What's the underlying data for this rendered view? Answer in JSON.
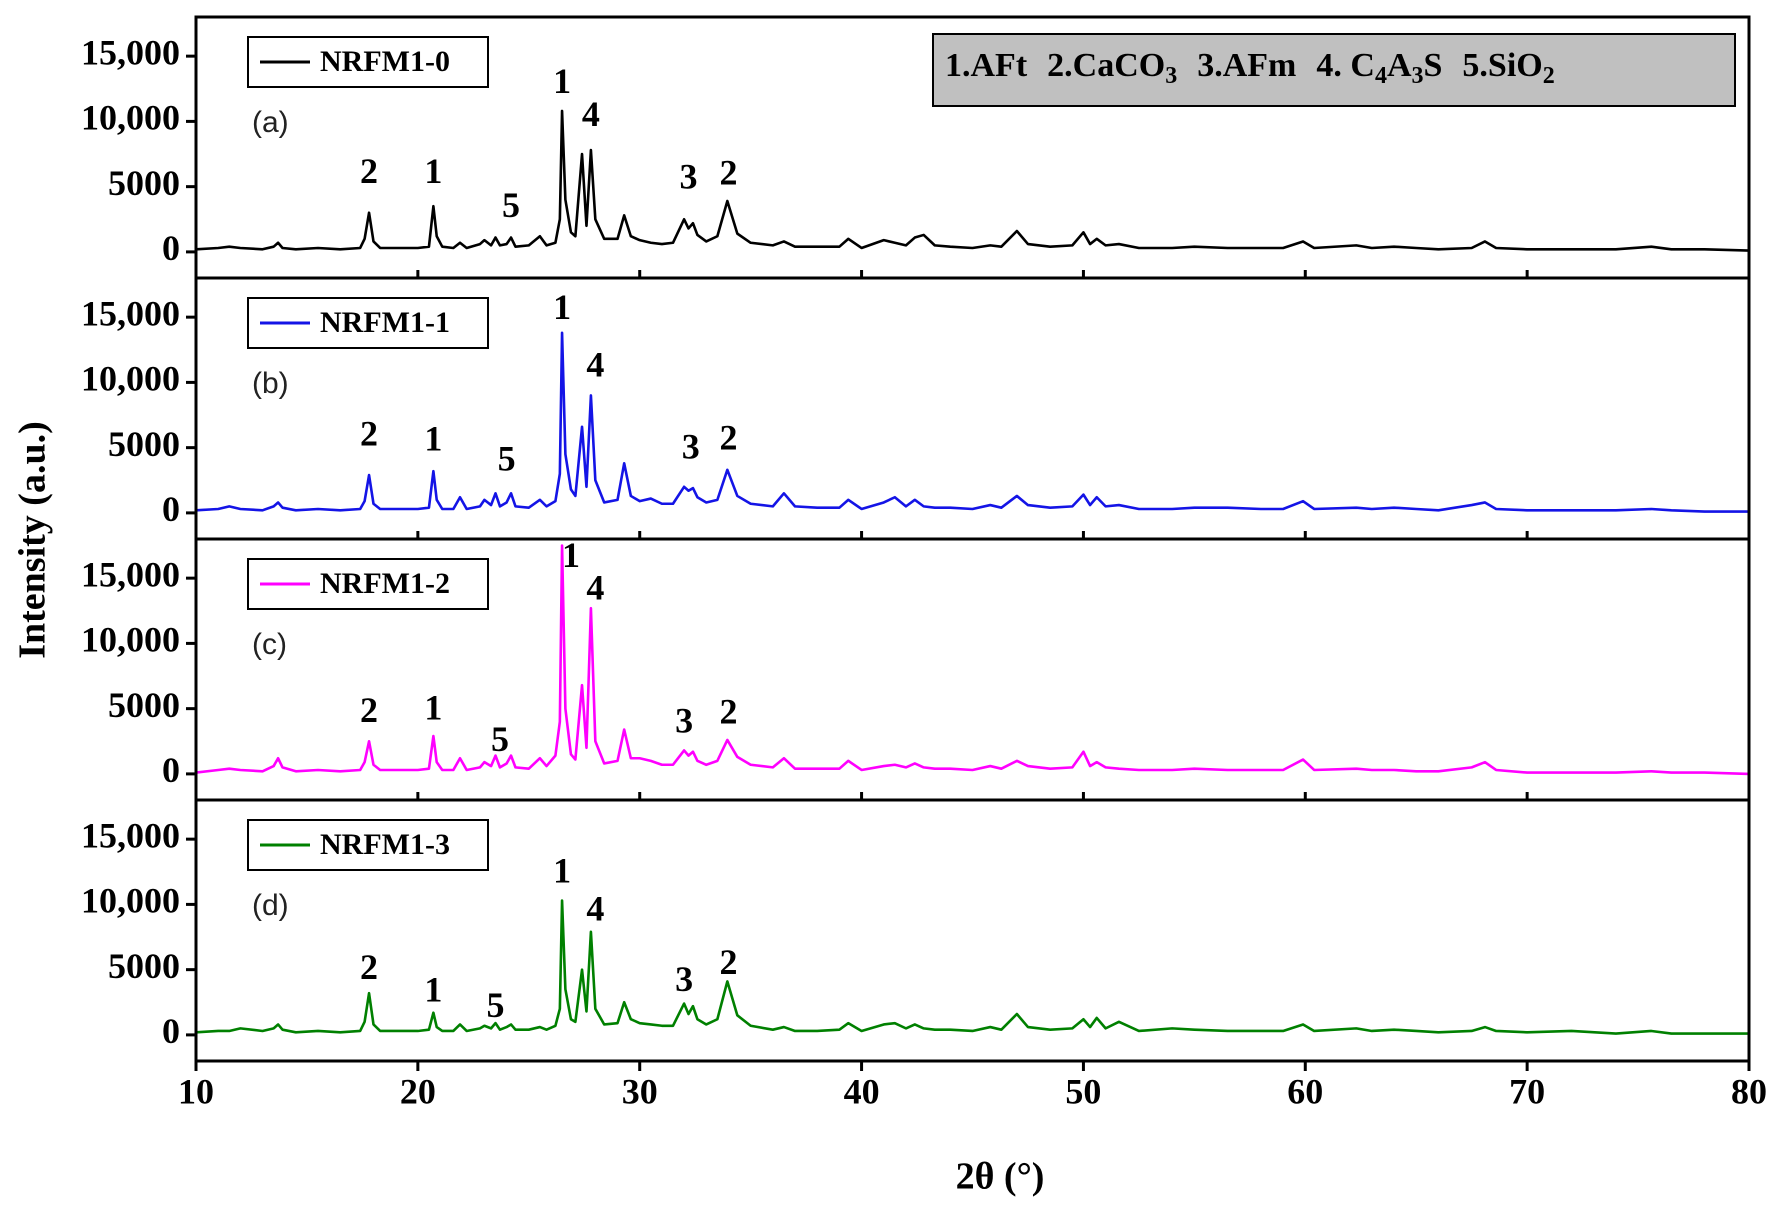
{
  "figure": {
    "x_label": "2θ (°)",
    "y_label": "Intensity (a.u.)",
    "xlim": [
      10,
      80
    ],
    "xticks": [
      10,
      20,
      30,
      40,
      50,
      60,
      70,
      80
    ],
    "phase_legend": [
      [
        "1.AFt"
      ],
      [
        "2.CaCO",
        "3"
      ],
      [
        "3.AFm"
      ],
      [
        "4. C",
        "4",
        "A",
        "3",
        "S"
      ],
      [
        "5.SiO",
        "2"
      ]
    ]
  },
  "chart_data": [
    {
      "type": "line",
      "panel_label": "(a)",
      "ylim": [
        -2000,
        18000
      ],
      "yticks": [
        0,
        5000,
        {
          "value": 10000,
          "label": "10,000"
        },
        {
          "value": 15000,
          "label": "15,000"
        }
      ],
      "x": [
        10,
        11,
        11.5,
        12,
        13,
        13.5,
        13.7,
        13.9,
        14.5,
        15.5,
        16.5,
        17.4,
        17.6,
        17.8,
        18.0,
        18.3,
        19,
        20,
        20.5,
        20.7,
        20.85,
        21.1,
        21.6,
        21.9,
        22.2,
        22.8,
        23.0,
        23.3,
        23.5,
        23.7,
        24.0,
        24.2,
        24.4,
        25,
        25.5,
        25.8,
        26.2,
        26.4,
        26.5,
        26.65,
        26.9,
        27.1,
        27.4,
        27.6,
        27.8,
        28.0,
        28.4,
        29.0,
        29.3,
        29.6,
        30.0,
        30.5,
        31.0,
        31.5,
        32.0,
        32.2,
        32.4,
        32.6,
        33.0,
        33.5,
        33.95,
        34.4,
        35,
        36,
        36.5,
        37,
        38,
        39,
        39.4,
        40,
        41,
        41.5,
        42,
        42.4,
        42.8,
        43.3,
        44,
        45,
        45.8,
        46.3,
        47.0,
        47.5,
        48.5,
        49.5,
        50.0,
        50.3,
        50.6,
        51,
        51.6,
        52.5,
        54,
        55,
        56.5,
        58,
        59,
        59.9,
        60.4,
        62.3,
        63,
        64,
        65,
        66,
        67.5,
        68.1,
        68.6,
        70,
        72,
        74,
        75.6,
        76.5,
        78,
        80
      ],
      "series": [
        {
          "name": "NRFM1-0",
          "color": "#000000",
          "values": [
            200,
            300,
            400,
            300,
            200,
            400,
            700,
            300,
            200,
            300,
            200,
            300,
            1000,
            3000,
            800,
            300,
            300,
            300,
            400,
            3500,
            1200,
            400,
            300,
            700,
            300,
            600,
            900,
            500,
            1100,
            500,
            600,
            1100,
            400,
            500,
            1200,
            500,
            700,
            2500,
            10800,
            4000,
            1500,
            1200,
            7500,
            2000,
            7800,
            2500,
            1000,
            1000,
            2800,
            1200,
            900,
            700,
            600,
            700,
            2500,
            1800,
            2200,
            1300,
            800,
            1200,
            3900,
            1400,
            700,
            500,
            800,
            400,
            400,
            400,
            1000,
            300,
            900,
            700,
            500,
            1100,
            1300,
            500,
            400,
            300,
            500,
            400,
            1600,
            600,
            400,
            500,
            1500,
            600,
            1000,
            500,
            600,
            300,
            300,
            400,
            300,
            300,
            300,
            800,
            300,
            500,
            300,
            400,
            300,
            200,
            300,
            800,
            300,
            200,
            200,
            200,
            400,
            200,
            200,
            100
          ]
        }
      ],
      "annotations": [
        {
          "label": "2",
          "x": 17.8,
          "y": 5900
        },
        {
          "label": "1",
          "x": 20.7,
          "y": 5900
        },
        {
          "label": "5",
          "x": 24.2,
          "y": 3300
        },
        {
          "label": "1",
          "x": 26.5,
          "y": 12800
        },
        {
          "label": "4",
          "x": 27.8,
          "y": 10300
        },
        {
          "label": "3",
          "x": 32.2,
          "y": 5500
        },
        {
          "label": "2",
          "x": 34.0,
          "y": 5800
        }
      ]
    },
    {
      "type": "line",
      "panel_label": "(b)",
      "ylim": [
        -2000,
        18000
      ],
      "yticks": [
        0,
        5000,
        {
          "value": 10000,
          "label": "10,000"
        },
        {
          "value": 15000,
          "label": "15,000"
        }
      ],
      "x": [
        10,
        11,
        11.5,
        12,
        13,
        13.5,
        13.7,
        13.9,
        14.5,
        15.5,
        16.5,
        17.4,
        17.6,
        17.8,
        18.0,
        18.3,
        19,
        20,
        20.5,
        20.7,
        20.85,
        21.1,
        21.6,
        21.9,
        22.2,
        22.8,
        23.0,
        23.3,
        23.5,
        23.7,
        24.0,
        24.2,
        24.4,
        25,
        25.5,
        25.8,
        26.2,
        26.4,
        26.5,
        26.65,
        26.9,
        27.1,
        27.4,
        27.6,
        27.8,
        28.0,
        28.4,
        29.0,
        29.3,
        29.6,
        30.0,
        30.5,
        31.0,
        31.5,
        32.0,
        32.2,
        32.4,
        32.6,
        33.0,
        33.5,
        33.95,
        34.4,
        35,
        36,
        36.5,
        37,
        38,
        39,
        39.4,
        40,
        41,
        41.5,
        42,
        42.4,
        42.8,
        43.3,
        44,
        45,
        45.8,
        46.3,
        47.0,
        47.5,
        48.5,
        49.5,
        50.0,
        50.3,
        50.6,
        51,
        51.6,
        52.5,
        54,
        55,
        56.5,
        58,
        59,
        59.9,
        60.4,
        62.3,
        63,
        64,
        65,
        66,
        67.5,
        68.1,
        68.6,
        70,
        72,
        74,
        75.6,
        76.5,
        78,
        80
      ],
      "series": [
        {
          "name": "NRFM1-1",
          "color": "#1414e6",
          "values": [
            200,
            300,
            500,
            300,
            200,
            500,
            800,
            400,
            200,
            300,
            200,
            300,
            900,
            2900,
            700,
            300,
            300,
            300,
            400,
            3200,
            1000,
            300,
            300,
            1200,
            300,
            500,
            1000,
            600,
            1500,
            500,
            800,
            1500,
            500,
            400,
            1000,
            500,
            900,
            3000,
            13800,
            4500,
            1800,
            1300,
            6600,
            2000,
            9000,
            2500,
            800,
            1000,
            3800,
            1300,
            900,
            1100,
            700,
            700,
            2000,
            1700,
            1900,
            1200,
            800,
            1000,
            3300,
            1300,
            700,
            500,
            1500,
            500,
            400,
            400,
            1000,
            300,
            800,
            1200,
            500,
            1000,
            500,
            400,
            400,
            300,
            600,
            400,
            1300,
            600,
            400,
            500,
            1400,
            600,
            1200,
            500,
            600,
            300,
            300,
            400,
            400,
            300,
            300,
            900,
            300,
            400,
            300,
            400,
            300,
            200,
            600,
            800,
            300,
            200,
            200,
            200,
            300,
            200,
            100,
            100
          ]
        }
      ],
      "annotations": [
        {
          "label": "2",
          "x": 17.8,
          "y": 5800
        },
        {
          "label": "1",
          "x": 20.7,
          "y": 5400
        },
        {
          "label": "5",
          "x": 24.0,
          "y": 3900
        },
        {
          "label": "1",
          "x": 26.5,
          "y": 15500
        },
        {
          "label": "4",
          "x": 28.0,
          "y": 11100
        },
        {
          "label": "3",
          "x": 32.3,
          "y": 4800
        },
        {
          "label": "2",
          "x": 34.0,
          "y": 5500
        }
      ]
    },
    {
      "type": "line",
      "panel_label": "(c)",
      "ylim": [
        -2000,
        18000
      ],
      "yticks": [
        0,
        5000,
        {
          "value": 10000,
          "label": "10,000"
        },
        {
          "value": 15000,
          "label": "15,000"
        }
      ],
      "x": [
        10,
        11,
        11.5,
        12,
        13,
        13.5,
        13.7,
        13.9,
        14.5,
        15.5,
        16.5,
        17.4,
        17.6,
        17.8,
        18.0,
        18.3,
        19,
        20,
        20.5,
        20.7,
        20.85,
        21.1,
        21.6,
        21.9,
        22.2,
        22.8,
        23.0,
        23.3,
        23.5,
        23.7,
        24.0,
        24.2,
        24.4,
        25,
        25.5,
        25.8,
        26.2,
        26.4,
        26.5,
        26.65,
        26.9,
        27.1,
        27.4,
        27.6,
        27.8,
        28.0,
        28.4,
        29.0,
        29.3,
        29.6,
        30.0,
        30.5,
        31.0,
        31.5,
        32.0,
        32.2,
        32.4,
        32.6,
        33.0,
        33.5,
        33.95,
        34.4,
        35,
        36,
        36.5,
        37,
        38,
        39,
        39.4,
        40,
        41,
        41.5,
        42,
        42.4,
        42.8,
        43.3,
        44,
        45,
        45.8,
        46.3,
        47.0,
        47.5,
        48.5,
        49.5,
        50.0,
        50.3,
        50.6,
        51,
        51.6,
        52.5,
        54,
        55,
        56.5,
        58,
        59,
        59.9,
        60.4,
        62.3,
        63,
        64,
        65,
        66,
        67.5,
        68.1,
        68.6,
        70,
        72,
        74,
        75.6,
        76.5,
        78,
        80
      ],
      "series": [
        {
          "name": "NRFM1-2",
          "color": "#ff00ff",
          "values": [
            100,
            300,
            400,
            300,
            200,
            600,
            1200,
            500,
            200,
            300,
            200,
            300,
            900,
            2500,
            700,
            300,
            300,
            300,
            400,
            2900,
            900,
            300,
            300,
            1200,
            300,
            500,
            900,
            600,
            1400,
            500,
            800,
            1400,
            500,
            400,
            1200,
            600,
            1400,
            4000,
            17500,
            5000,
            1500,
            1100,
            6800,
            2000,
            12700,
            2500,
            800,
            1000,
            3400,
            1200,
            1200,
            1000,
            700,
            700,
            1800,
            1400,
            1700,
            1000,
            700,
            1000,
            2600,
            1300,
            700,
            500,
            1200,
            400,
            400,
            400,
            1000,
            300,
            600,
            700,
            500,
            800,
            500,
            400,
            400,
            300,
            600,
            400,
            1000,
            600,
            400,
            500,
            1700,
            600,
            900,
            500,
            400,
            300,
            300,
            400,
            300,
            300,
            300,
            1100,
            300,
            400,
            300,
            300,
            200,
            200,
            500,
            900,
            300,
            100,
            100,
            100,
            200,
            100,
            100,
            0
          ]
        }
      ],
      "annotations": [
        {
          "label": "2",
          "x": 17.8,
          "y": 4600
        },
        {
          "label": "1",
          "x": 20.7,
          "y": 4800
        },
        {
          "label": "5",
          "x": 23.7,
          "y": 2400
        },
        {
          "label": "1",
          "x": 26.9,
          "y": 16500
        },
        {
          "label": "4",
          "x": 28.0,
          "y": 14000
        },
        {
          "label": "3",
          "x": 32.0,
          "y": 3800
        },
        {
          "label": "2",
          "x": 34.0,
          "y": 4500
        }
      ]
    },
    {
      "type": "line",
      "panel_label": "(d)",
      "ylim": [
        -2000,
        18000
      ],
      "yticks": [
        0,
        5000,
        {
          "value": 10000,
          "label": "10,000"
        },
        {
          "value": 15000,
          "label": "15,000"
        }
      ],
      "x": [
        10,
        11,
        11.5,
        12,
        13,
        13.5,
        13.7,
        13.9,
        14.5,
        15.5,
        16.5,
        17.4,
        17.6,
        17.8,
        18.0,
        18.3,
        19,
        20,
        20.5,
        20.7,
        20.85,
        21.1,
        21.6,
        21.9,
        22.2,
        22.8,
        23.0,
        23.3,
        23.5,
        23.7,
        24.0,
        24.2,
        24.4,
        25,
        25.5,
        25.8,
        26.2,
        26.4,
        26.5,
        26.65,
        26.9,
        27.1,
        27.4,
        27.6,
        27.8,
        28.0,
        28.4,
        29.0,
        29.3,
        29.6,
        30.0,
        30.5,
        31.0,
        31.5,
        32.0,
        32.2,
        32.4,
        32.6,
        33.0,
        33.5,
        33.95,
        34.4,
        35,
        36,
        36.5,
        37,
        38,
        39,
        39.4,
        40,
        41,
        41.5,
        42,
        42.4,
        42.8,
        43.3,
        44,
        45,
        45.8,
        46.3,
        47.0,
        47.5,
        48.5,
        49.5,
        50.0,
        50.3,
        50.6,
        51,
        51.6,
        52.5,
        54,
        55,
        56.5,
        58,
        59,
        59.9,
        60.4,
        62.3,
        63,
        64,
        65,
        66,
        67.5,
        68.1,
        68.6,
        70,
        72,
        74,
        75.6,
        76.5,
        78,
        80
      ],
      "series": [
        {
          "name": "NRFM1-3",
          "color": "#008000",
          "values": [
            200,
            300,
            300,
            500,
            300,
            500,
            800,
            400,
            200,
            300,
            200,
            300,
            1000,
            3200,
            800,
            300,
            300,
            300,
            400,
            1700,
            600,
            300,
            300,
            800,
            300,
            500,
            700,
            500,
            900,
            400,
            600,
            800,
            400,
            400,
            600,
            400,
            700,
            2000,
            10300,
            3500,
            1200,
            1000,
            5000,
            1800,
            7900,
            2000,
            800,
            900,
            2500,
            1200,
            900,
            800,
            700,
            700,
            2400,
            1600,
            2200,
            1200,
            800,
            1200,
            4100,
            1500,
            700,
            400,
            600,
            300,
            300,
            400,
            900,
            300,
            800,
            900,
            500,
            800,
            500,
            400,
            400,
            300,
            600,
            400,
            1600,
            600,
            400,
            500,
            1200,
            600,
            1300,
            500,
            1000,
            300,
            500,
            400,
            300,
            300,
            300,
            800,
            300,
            500,
            300,
            400,
            300,
            200,
            300,
            600,
            300,
            200,
            300,
            100,
            300,
            100,
            100,
            100
          ]
        }
      ],
      "annotations": [
        {
          "label": "2",
          "x": 17.8,
          "y": 4900
        },
        {
          "label": "1",
          "x": 20.7,
          "y": 3200
        },
        {
          "label": "5",
          "x": 23.5,
          "y": 2000
        },
        {
          "label": "1",
          "x": 26.5,
          "y": 12300
        },
        {
          "label": "4",
          "x": 28.0,
          "y": 9400
        },
        {
          "label": "3",
          "x": 32.0,
          "y": 4000
        },
        {
          "label": "2",
          "x": 34.0,
          "y": 5300
        }
      ]
    }
  ]
}
